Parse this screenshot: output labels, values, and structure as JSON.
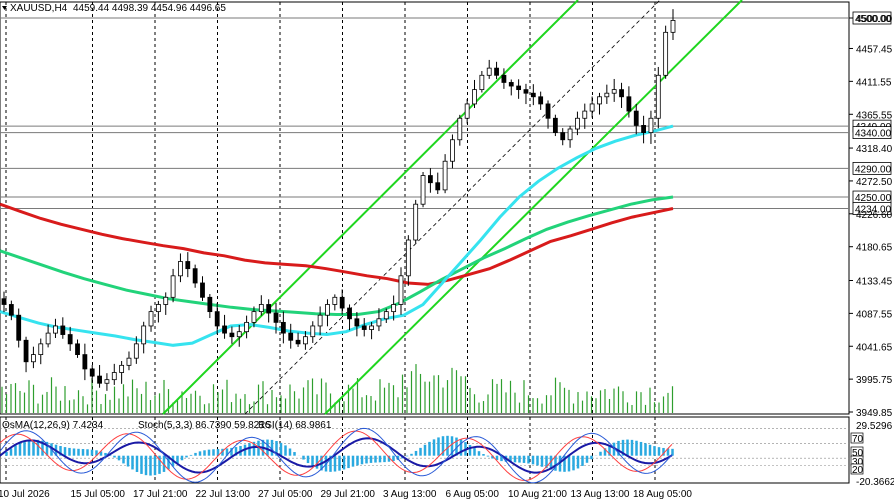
{
  "header": {
    "symbol": "XAUUSD,H4",
    "ohlc": "4459.44 4498.39 4454.96 4496.65"
  },
  "indicator_header": {
    "osma": "OsMA(12,26,9) 7.4234",
    "stoch": "Stoch(5,3,3) 86.7390 59.8216",
    "rsi": "RSI(14) 68.9861"
  },
  "chart_data": {
    "type": "candlestick",
    "price_axis_ticks": [
      "4500.00",
      "4457.45",
      "4411.55",
      "4365.55",
      "4318.40",
      "4272.50",
      "4226.60",
      "4180.65",
      "4133.45",
      "4087.55",
      "4041.65",
      "3995.75",
      "3949.85"
    ],
    "price_range": [
      3949.85,
      4525
    ],
    "marked_levels": [
      {
        "value": 4500.0,
        "label": "4500.00"
      },
      {
        "value": 4349.0,
        "label": "4349.00"
      },
      {
        "value": 4340.0,
        "label": "4340.00"
      },
      {
        "value": 4290.0,
        "label": "4290.00"
      },
      {
        "value": 4250.0,
        "label": "4250.00"
      },
      {
        "value": 4234.0,
        "label": "4234.00"
      }
    ],
    "time_labels": [
      "10 Jul 2026",
      "15 Jul 05:00",
      "17 Jul 21:00",
      "22 Jul 13:00",
      "27 Jul 05:00",
      "29 Jul 21:00",
      "3 Aug 13:00",
      "6 Aug 05:00",
      "10 Aug 21:00",
      "13 Aug 13:00",
      "18 Aug 05:00"
    ],
    "close_path": [
      4100,
      4085,
      4050,
      4020,
      4030,
      4045,
      4060,
      4070,
      4058,
      4045,
      4030,
      4010,
      4000,
      3990,
      3995,
      4005,
      4015,
      4025,
      4045,
      4070,
      4090,
      4100,
      4110,
      4140,
      4160,
      4150,
      4130,
      4110,
      4090,
      4070,
      4060,
      4055,
      4062,
      4075,
      4090,
      4100,
      4088,
      4075,
      4060,
      4050,
      4045,
      4055,
      4070,
      4085,
      4100,
      4110,
      4095,
      4080,
      4070,
      4065,
      4070,
      4080,
      4090,
      4100,
      4140,
      4190,
      4240,
      4280,
      4270,
      4260,
      4300,
      4330,
      4360,
      4380,
      4400,
      4420,
      4430,
      4420,
      4410,
      4405,
      4400,
      4395,
      4390,
      4380,
      4360,
      4340,
      4330,
      4345,
      4360,
      4370,
      4380,
      4390,
      4395,
      4400,
      4390,
      4370,
      4350,
      4340,
      4360,
      4420,
      4480,
      4496.65
    ],
    "ma_red": [
      4240,
      4230,
      4220,
      4212,
      4205,
      4198,
      4192,
      4187,
      4182,
      4178,
      4172,
      4168,
      4162,
      4158,
      4156,
      4154,
      4150,
      4145,
      4140,
      4136,
      4130,
      4128,
      4134,
      4142,
      4150,
      4162,
      4175,
      4188,
      4196,
      4205,
      4214,
      4222,
      4228,
      4234
    ],
    "ma_green": [
      4175,
      4165,
      4155,
      4145,
      4136,
      4128,
      4120,
      4114,
      4108,
      4104,
      4100,
      4096,
      4093,
      4091,
      4089,
      4087,
      4086,
      4086,
      4090,
      4102,
      4118,
      4135,
      4150,
      4165,
      4178,
      4192,
      4205,
      4215,
      4224,
      4232,
      4240,
      4246,
      4250
    ],
    "ma_cyan": [
      4090,
      4082,
      4074,
      4068,
      4064,
      4060,
      4056,
      4051,
      4047,
      4043,
      4046,
      4058,
      4070,
      4072,
      4068,
      4063,
      4060,
      4058,
      4062,
      4072,
      4080,
      4085,
      4100,
      4130,
      4160,
      4190,
      4222,
      4250,
      4272,
      4290,
      4305,
      4318,
      4328,
      4336,
      4342,
      4349
    ],
    "trend_channel": {
      "lower_line_label": "",
      "upper_line_label": ""
    },
    "indicator_ticks": [
      "29.5296",
      "70",
      "50",
      "30",
      "20",
      "-20.3662"
    ]
  }
}
